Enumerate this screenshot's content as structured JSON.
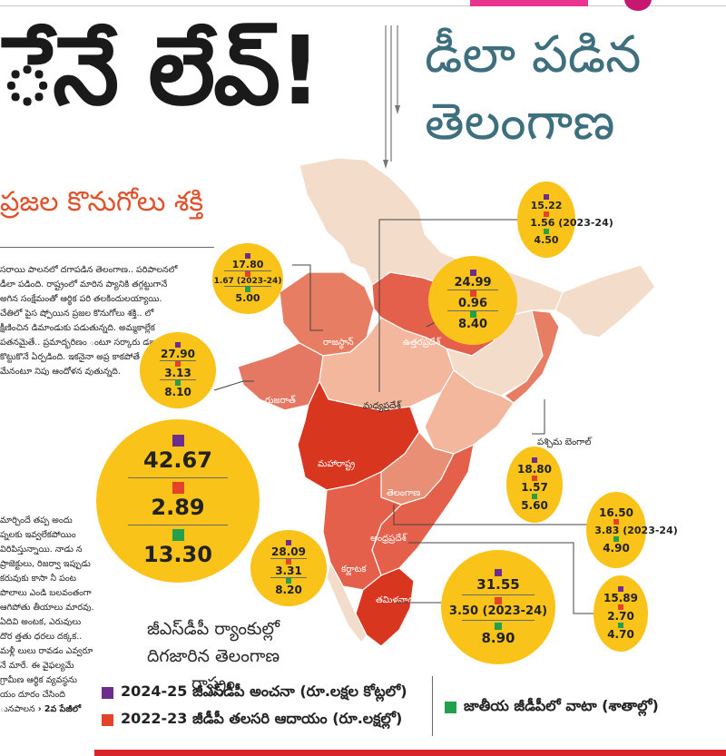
{
  "headline": "ేనే లేవ్!",
  "subhead": {
    "line1": "డీలా పడిన",
    "line2": "తెలంగాణ"
  },
  "kicker": "ప్రజల కొనుగోలు శక్తి",
  "article": {
    "paragraphs": [
      "సరాయి పాలనలో దగాపడిన తెలంగాణ.. పరిపాలనలో డీలా పడింది. రాష్ట్రంలో మారిన ప్యానికి తగ్గట్టుగానే అగిన సంక్షేమంతో ఆర్థిక పరి తలకిందులయ్యాయి. చేతిలో పైస ష్పోయిన ప్రజల కొనుగోలు శక్తి.. లో క్షీణించిన డిమాండుకు పడుతున్నది. అమ్మకాల్లేక పతనమైతే.. ప్రమాద్భరిణం ంటూ సర్కారు డబ్బా కొట్టుకొనే ఏర్పడింది. ఇకనైనా అప్ర కాకపోతే తీవ్ర ఆర్థిక మేనంటూ నిపు ఆందోళన వుతున్నది."
    ],
    "paragraph2": "మార్చిందే తప్ప అందు ప్నలకు ఇవ్వలేకపోయిం విరిపిస్తున్నాయి. నాడు న ప్రాజెక్టులు, రిజర్వా ఇప్పుడు కరువుకు కాసా నీ పంట పొలాలు ఎండి బలవంతంగా ఆగిపోతు తీయాలు మారవు. ఏదివి అంటక, ఎరువులు దొర త్తతు ధరలు దక్కక.. మళ్లీ లులు రావడం ఎవ్వరూ నే మారే. ఈ వైఫల్యమే గ్రామీణ ఆర్థిక వ్యవస్థను యం దూరం చేసింది ునపాలన",
    "continued": "2వ పేజీలో"
  },
  "states": [
    {
      "name": "రాజస్థాన్",
      "gsdp": "17.80",
      "income": "1.67 (2023-24)",
      "share": "5.00"
    },
    {
      "name": "ఉత్తరప్రదేశ్",
      "gsdp": "24.99",
      "income": "0.96",
      "share": "8.40"
    },
    {
      "name": "మధ్యప్రదేశ్",
      "gsdp": "15.22",
      "income": "1.56 (2023-24)",
      "share": "4.50"
    },
    {
      "name": "గుజరాత్",
      "gsdp": "27.90",
      "income": "3.13",
      "share": "8.10"
    },
    {
      "name": "మహారాష్ట్ర",
      "gsdp": "42.67",
      "income": "2.89",
      "share": "13.30"
    },
    {
      "name": "పశ్చిమ బెంగాల్",
      "gsdp": "18.80",
      "income": "1.57",
      "share": "5.60"
    },
    {
      "name": "తెలంగాణ",
      "gsdp": "16.50",
      "income": "3.83 (2023-24)",
      "share": "4.90"
    },
    {
      "name": "ఆంధ్రప్రదేశ్",
      "gsdp": "15.89",
      "income": "2.70",
      "share": "4.70"
    },
    {
      "name": "కర్ణాటక",
      "gsdp": "28.09",
      "income": "3.31",
      "share": "8.20"
    },
    {
      "name": "తమిళనాడు",
      "gsdp": "31.55",
      "income": "3.50 (2023-24)",
      "share": "8.90"
    }
  ],
  "rank_note": {
    "line1": "జీఎస్‌డీపీ ర్యాంకుల్లో",
    "line2": "దిగజారిన తెలంగాణ రాష్ట్రం"
  },
  "legend": {
    "gsdp": "2024-25 జీఎస్‌డీపీ అంచనా (రూ.లక్షల కోట్లలో)",
    "income": "2022-23 జీడీపీ తలసరి ఆదాయం (రూ.లక్షల్లో)",
    "share": "జాతీయ జీడీపీలో వాటా (శాతాల్లో)"
  },
  "colors": {
    "purple": "#6c2d8e",
    "red": "#e4432a",
    "green": "#22a04b",
    "bubble": "#f9c31a",
    "accent": "#e8348f",
    "subhead": "#3d6f7e"
  }
}
